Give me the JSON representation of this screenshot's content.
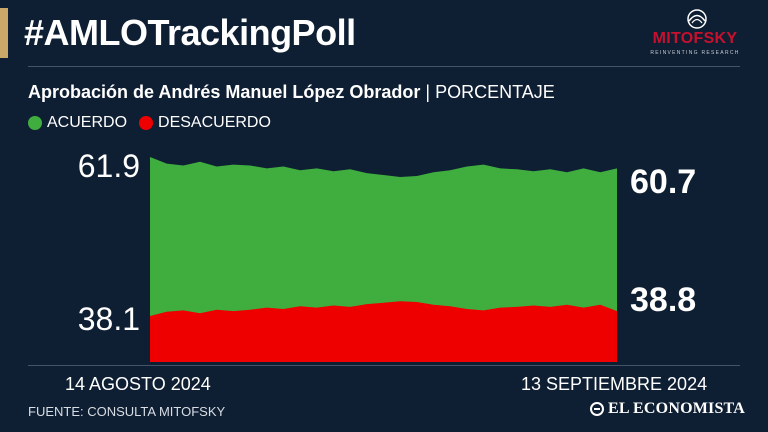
{
  "header": {
    "title": "#AMLOTrackingPoll",
    "accent_color": "#c9a86a"
  },
  "logo": {
    "wordmark": "MITOFSKY",
    "tagline": "REINVENTING RESEARCH",
    "brand_color": "#c8102e",
    "icon": "mitofsky-logo-icon"
  },
  "subtitle": {
    "main": "Aprobación de Andrés Manuel López Obrador",
    "separator": "|",
    "unit": "PORCENTAJE"
  },
  "legend": {
    "items": [
      {
        "label": "ACUERDO",
        "color": "#3fae3f"
      },
      {
        "label": "DESACUERDO",
        "color": "#ee0000"
      }
    ]
  },
  "footer": {
    "source": "FUENTE: CONSULTA MITOFSKY",
    "publisher": "EL ECONOMISTA",
    "publisher_icon": "el-economista-icon"
  },
  "chart_data": {
    "type": "area",
    "x_start_label": "14 AGOSTO 2024",
    "x_end_label": "13 SEPTIEMBRE 2024",
    "series": [
      {
        "name": "ACUERDO",
        "color": "#3fae3f",
        "first_label": "61.9",
        "last_label": "60.7",
        "values": [
          61.9,
          61.2,
          61.0,
          61.4,
          60.9,
          61.1,
          61.0,
          60.7,
          60.9,
          60.5,
          60.7,
          60.4,
          60.6,
          60.2,
          60.0,
          59.8,
          59.9,
          60.3,
          60.5,
          60.9,
          61.1,
          60.7,
          60.6,
          60.4,
          60.6,
          60.3,
          60.7,
          60.3,
          60.7
        ]
      },
      {
        "name": "DESACUERDO",
        "color": "#ee0000",
        "first_label": "38.1",
        "last_label": "38.8",
        "values": [
          38.1,
          38.7,
          38.9,
          38.5,
          39.0,
          38.8,
          39.0,
          39.3,
          39.1,
          39.5,
          39.3,
          39.6,
          39.4,
          39.8,
          40.0,
          40.2,
          40.1,
          39.7,
          39.5,
          39.1,
          38.9,
          39.3,
          39.4,
          39.6,
          39.4,
          39.7,
          39.3,
          39.7,
          38.8
        ]
      }
    ]
  }
}
